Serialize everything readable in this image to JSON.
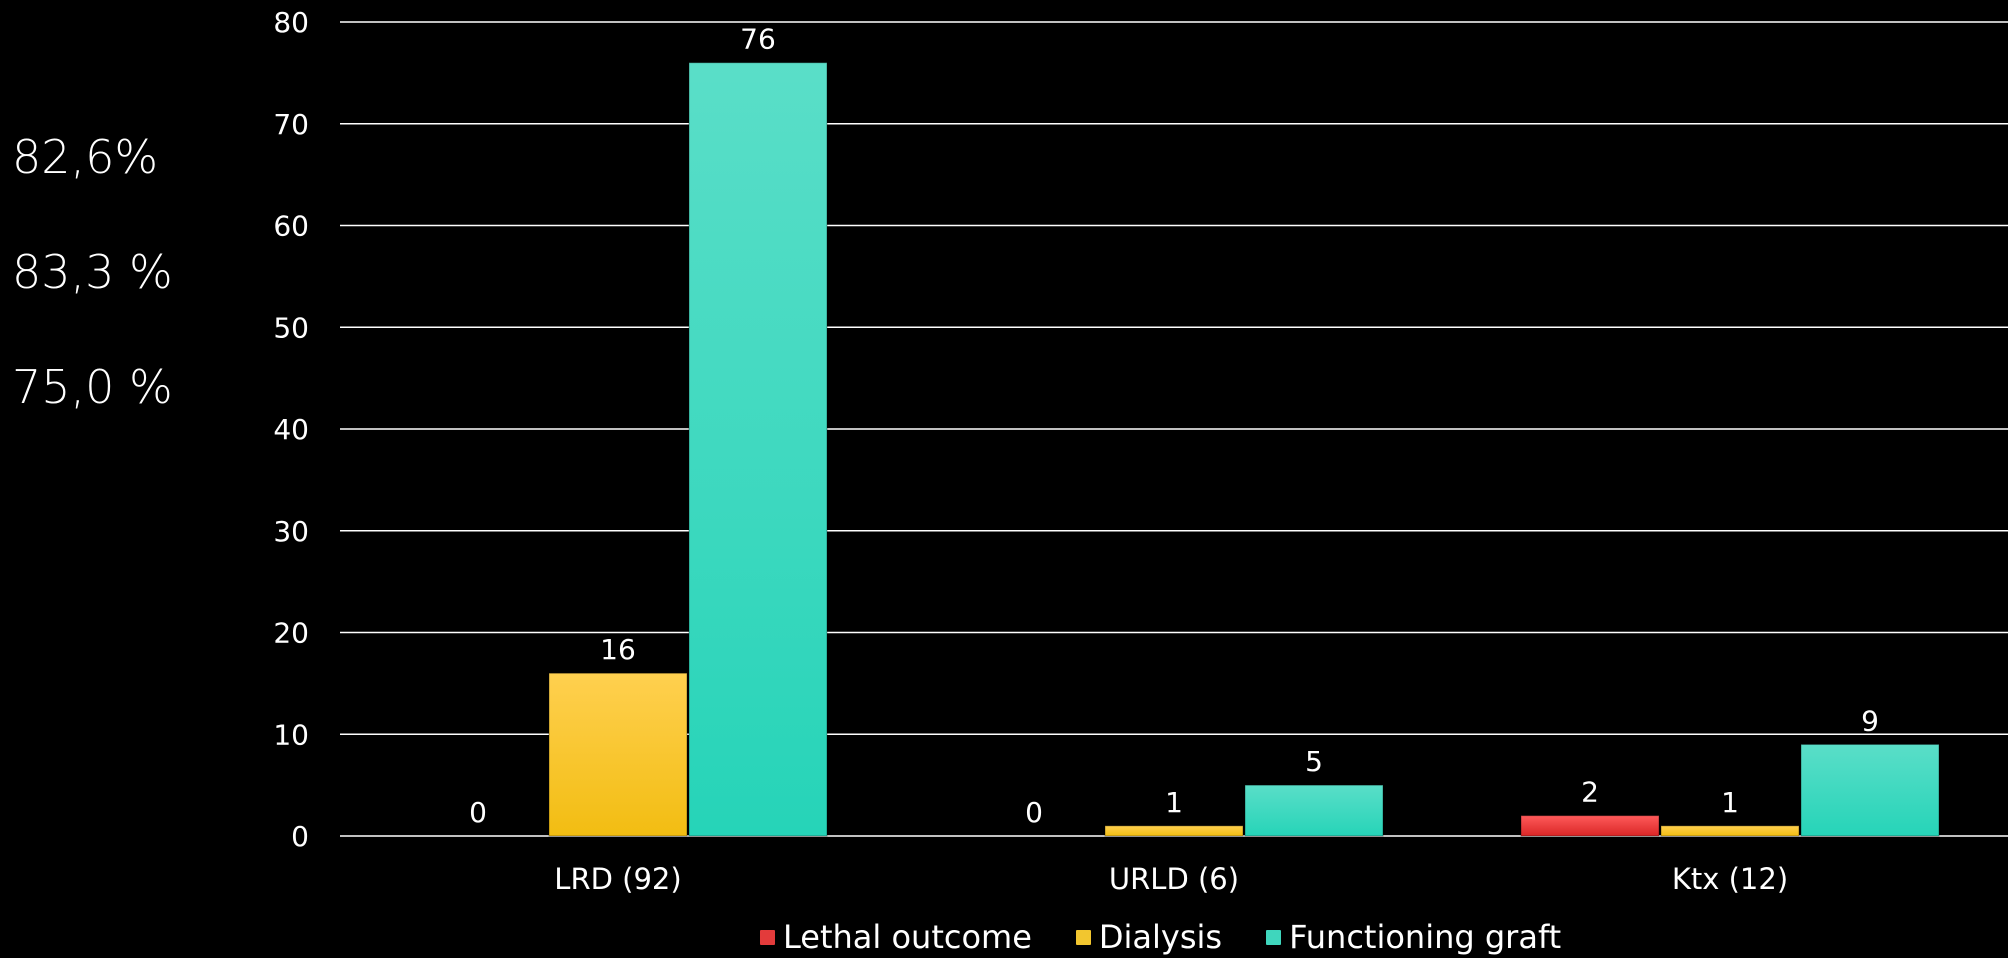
{
  "side_percentages": [
    "82,6%",
    "83,3 %",
    "75,0 %"
  ],
  "colors": {
    "lethal": "#e33b3b",
    "dialysis": "#f2c62f",
    "graft": "#3fd6bd",
    "grid": "#ffffff",
    "text": "#ffffff"
  },
  "chart_data": {
    "type": "bar",
    "categories": [
      "LRD (92)",
      "URLD (6)",
      "Ktx (12)"
    ],
    "series": [
      {
        "name": "Lethal outcome",
        "values": [
          0,
          0,
          2
        ]
      },
      {
        "name": "Dialysis",
        "values": [
          16,
          1,
          1
        ]
      },
      {
        "name": "Functioning graft",
        "values": [
          76,
          5,
          9
        ]
      }
    ],
    "ylim": [
      0,
      80
    ],
    "yticks": [
      "0",
      "10",
      "20",
      "30",
      "40",
      "50",
      "60",
      "70",
      "80"
    ],
    "grid": true,
    "legend": "bottom"
  }
}
